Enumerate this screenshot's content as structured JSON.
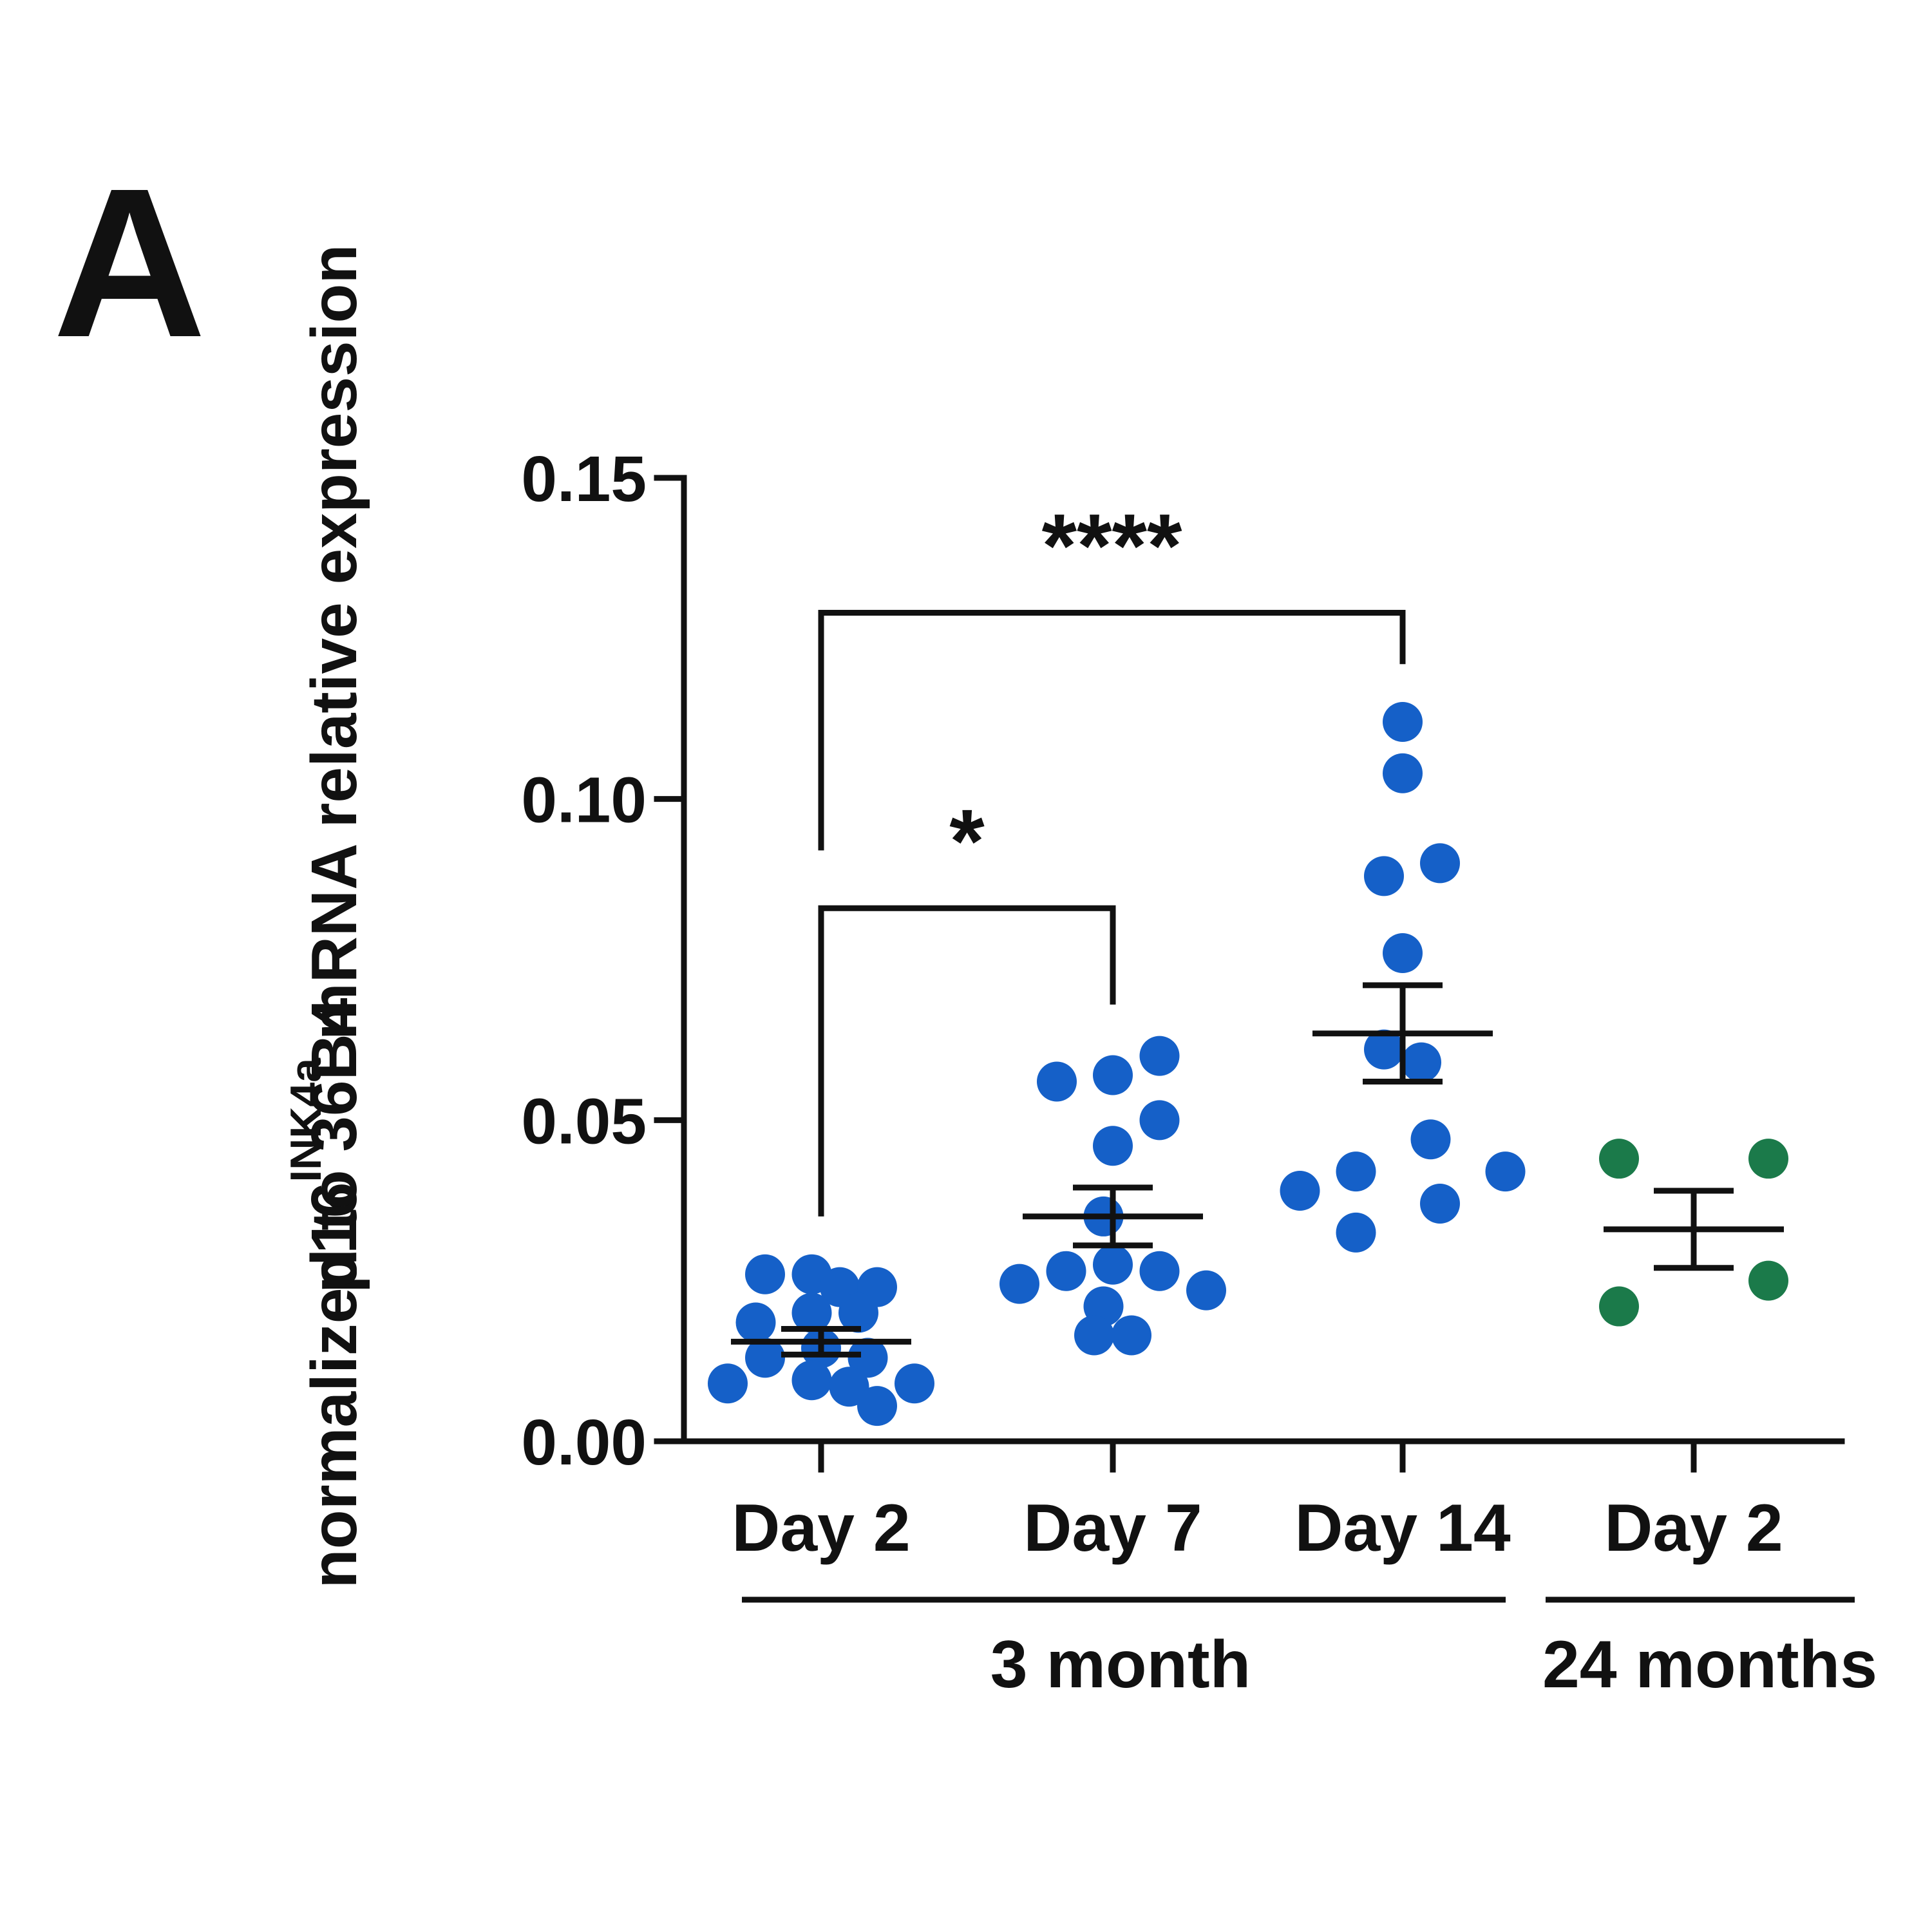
{
  "panel_label": "A",
  "colors": {
    "young": "#1560C8",
    "old": "#1B7A4A",
    "ink": "#111111"
  },
  "chart_data": {
    "type": "scatter",
    "title": "",
    "xlabel": "",
    "ylabel": {
      "prefix": "p16",
      "superscript": "INK4a",
      "line1_rest": " mRNA relative expression",
      "line2": "normalized to 36B4"
    },
    "ylim": [
      0,
      0.15
    ],
    "yticks": [
      {
        "value": 0.0,
        "label": "0.00"
      },
      {
        "value": 0.05,
        "label": "0.05"
      },
      {
        "value": 0.1,
        "label": "0.10"
      },
      {
        "value": 0.15,
        "label": "0.15"
      }
    ],
    "categories": [
      "Day 2",
      "Day 7",
      "Day 14",
      "Day 2"
    ],
    "groups": [
      {
        "label": "3 month",
        "categories": [
          0,
          1,
          2
        ]
      },
      {
        "label": "24 months",
        "categories": [
          3
        ]
      }
    ],
    "series": [
      {
        "name": "3 month Day 2",
        "category": 0,
        "color": "young",
        "mean": 0.0155,
        "sem": 0.002,
        "points": [
          {
            "dx": -0.3,
            "y": 0.026
          },
          {
            "dx": -0.05,
            "y": 0.026
          },
          {
            "dx": 0.1,
            "y": 0.024
          },
          {
            "dx": 0.3,
            "y": 0.024
          },
          {
            "dx": -0.35,
            "y": 0.0185
          },
          {
            "dx": -0.05,
            "y": 0.02
          },
          {
            "dx": 0.2,
            "y": 0.02
          },
          {
            "dx": -0.3,
            "y": 0.013
          },
          {
            "dx": 0.0,
            "y": 0.0145
          },
          {
            "dx": 0.25,
            "y": 0.013
          },
          {
            "dx": -0.5,
            "y": 0.009
          },
          {
            "dx": -0.05,
            "y": 0.0095
          },
          {
            "dx": 0.15,
            "y": 0.0085
          },
          {
            "dx": 0.5,
            "y": 0.009
          },
          {
            "dx": 0.3,
            "y": 0.0055
          }
        ]
      },
      {
        "name": "3 month Day 7",
        "category": 1,
        "color": "young",
        "mean": 0.035,
        "sem": 0.0045,
        "points": [
          {
            "dx": 0.25,
            "y": 0.06
          },
          {
            "dx": -0.3,
            "y": 0.056
          },
          {
            "dx": 0.0,
            "y": 0.057
          },
          {
            "dx": 0.25,
            "y": 0.05
          },
          {
            "dx": 0.0,
            "y": 0.046
          },
          {
            "dx": -0.05,
            "y": 0.035
          },
          {
            "dx": -0.25,
            "y": 0.0265
          },
          {
            "dx": 0.0,
            "y": 0.0275
          },
          {
            "dx": 0.25,
            "y": 0.0265
          },
          {
            "dx": -0.5,
            "y": 0.0245
          },
          {
            "dx": 0.5,
            "y": 0.0235
          },
          {
            "dx": -0.05,
            "y": 0.021
          },
          {
            "dx": -0.1,
            "y": 0.0165
          },
          {
            "dx": 0.1,
            "y": 0.0165
          }
        ]
      },
      {
        "name": "3 month Day 14",
        "category": 2,
        "color": "young",
        "mean": 0.0635,
        "sem": 0.0075,
        "points": [
          {
            "dx": 0.0,
            "y": 0.112
          },
          {
            "dx": 0.0,
            "y": 0.104
          },
          {
            "dx": -0.1,
            "y": 0.088
          },
          {
            "dx": 0.2,
            "y": 0.09
          },
          {
            "dx": 0.0,
            "y": 0.076
          },
          {
            "dx": -0.1,
            "y": 0.061
          },
          {
            "dx": 0.1,
            "y": 0.059
          },
          {
            "dx": 0.15,
            "y": 0.047
          },
          {
            "dx": -0.25,
            "y": 0.042
          },
          {
            "dx": 0.55,
            "y": 0.042
          },
          {
            "dx": -0.55,
            "y": 0.039
          },
          {
            "dx": 0.2,
            "y": 0.037
          },
          {
            "dx": -0.25,
            "y": 0.0325
          }
        ]
      },
      {
        "name": "24 months Day 2",
        "category": 3,
        "color": "old",
        "mean": 0.033,
        "sem": 0.006,
        "points": [
          {
            "dx": -0.4,
            "y": 0.044
          },
          {
            "dx": 0.4,
            "y": 0.044
          },
          {
            "dx": 0.4,
            "y": 0.025
          },
          {
            "dx": -0.4,
            "y": 0.021
          }
        ]
      }
    ],
    "significance": [
      {
        "from": 0,
        "to": 1,
        "label": "*",
        "bar_y": 0.083,
        "left_drop_to": 0.035,
        "right_drop_to": 0.068
      },
      {
        "from": 0,
        "to": 2,
        "label": "****",
        "bar_y": 0.129,
        "left_drop_to": 0.092,
        "right_drop_to": 0.121
      }
    ]
  }
}
